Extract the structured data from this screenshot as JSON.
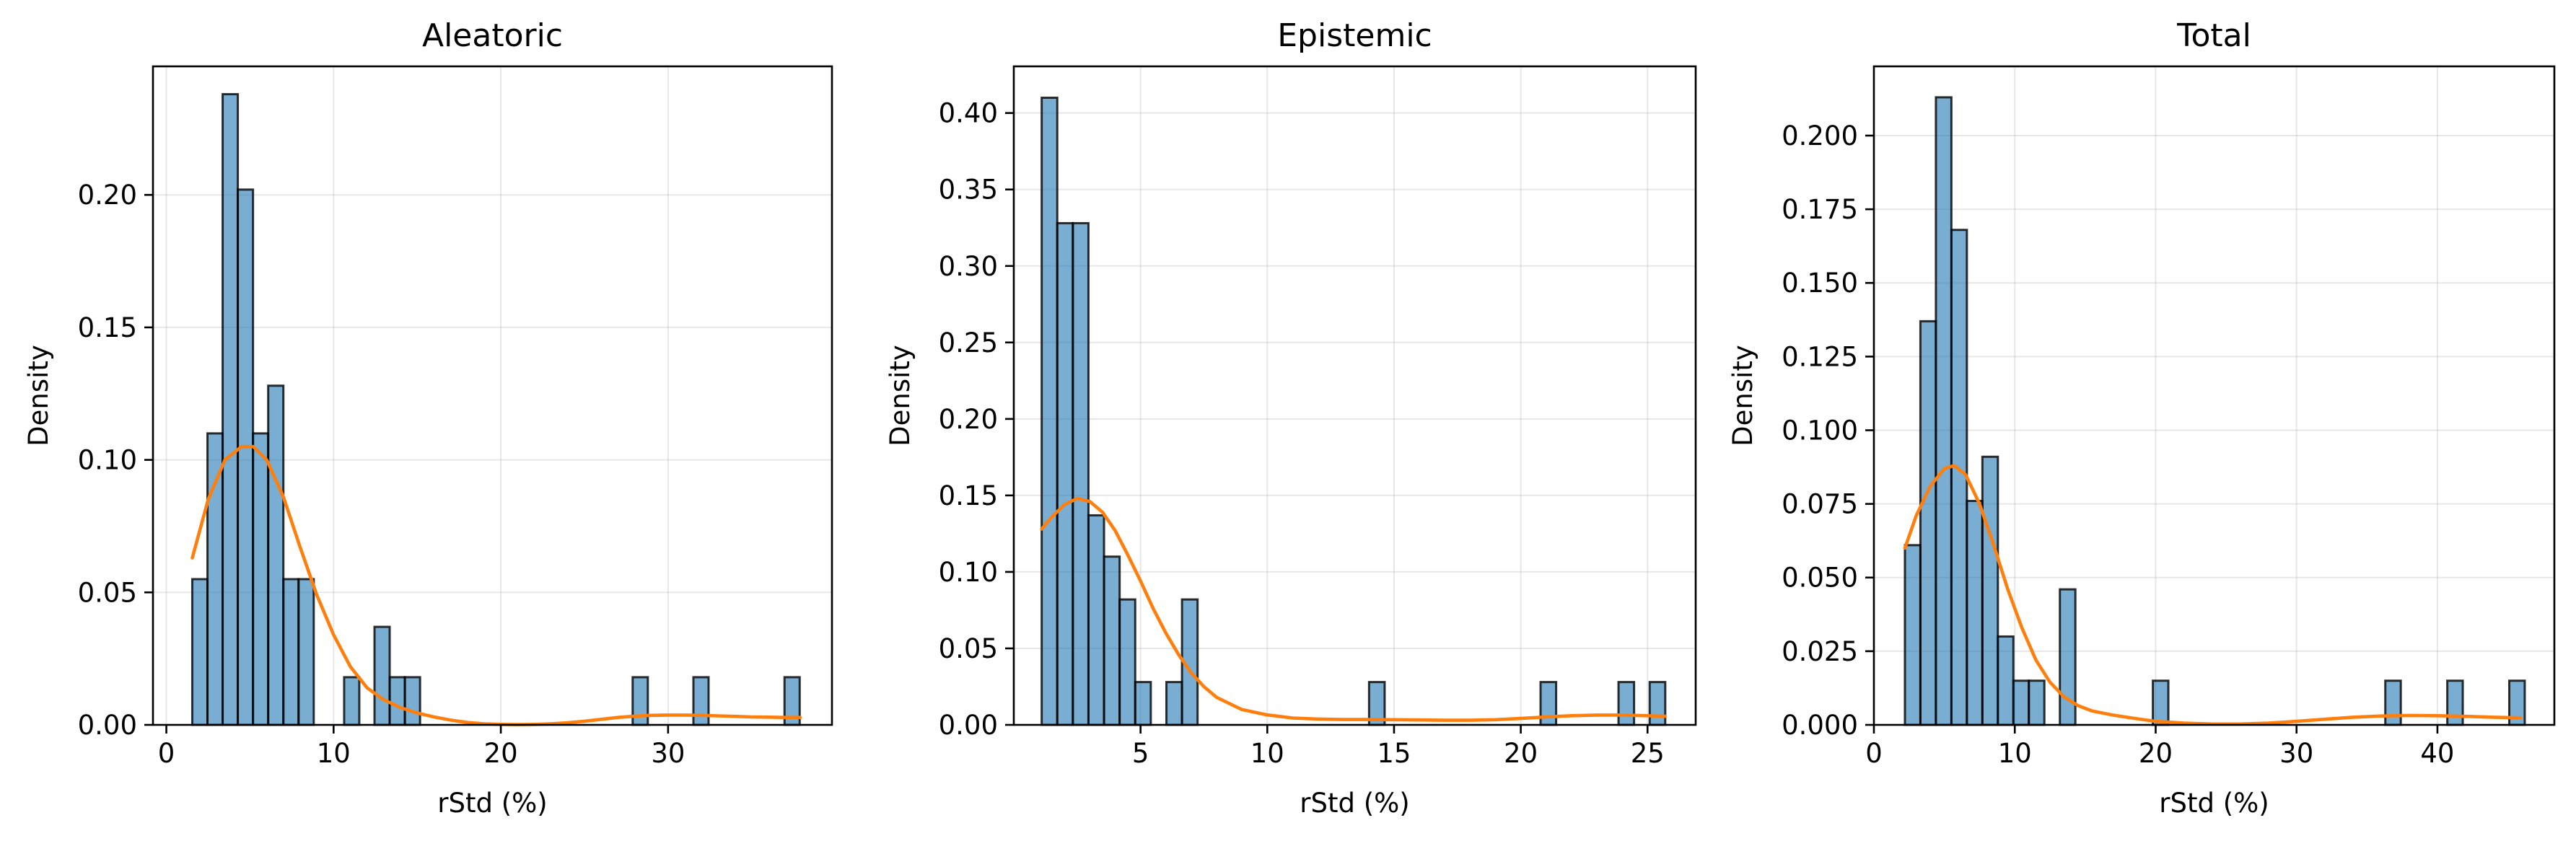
{
  "colors": {
    "bar": "#1f77b4",
    "bar_opacity": 0.6,
    "kde": "#ff7f0e"
  },
  "chart_data": [
    {
      "type": "bar",
      "title": "Aleatoric",
      "xlabel": "rStd (%)",
      "ylabel": "Density",
      "xlim": [
        -0.8,
        39.8
      ],
      "ylim": [
        0,
        0.2485
      ],
      "xticks": [
        0,
        10,
        20,
        30
      ],
      "yticks": [
        0.0,
        0.05,
        0.1,
        0.15,
        0.2
      ],
      "ytick_labels": [
        "0.00",
        "0.05",
        "0.10",
        "0.15",
        "0.20"
      ],
      "grid": true,
      "bin_start": 1.55,
      "bin_width": 0.908,
      "values": [
        0.055,
        0.11,
        0.238,
        0.202,
        0.11,
        0.128,
        0.055,
        0.055,
        0,
        0,
        0.018,
        0,
        0.037,
        0.018,
        0.018,
        0,
        0,
        0,
        0,
        0,
        0,
        0,
        0,
        0,
        0,
        0,
        0,
        0,
        0,
        0.018,
        0,
        0,
        0,
        0.018,
        0,
        0,
        0,
        0,
        0,
        0.018
      ],
      "kde": {
        "x": [
          1.55,
          2.5,
          3.5,
          4.5,
          5.2,
          6,
          7,
          8,
          9,
          10,
          11,
          12,
          13,
          14,
          15,
          16,
          17,
          18,
          19,
          20,
          21,
          22,
          23,
          24,
          25,
          26,
          27,
          28,
          29,
          30,
          31,
          32,
          33,
          34,
          35,
          36,
          37,
          37.9
        ],
        "y": [
          0.063,
          0.085,
          0.1,
          0.105,
          0.105,
          0.1,
          0.086,
          0.067,
          0.049,
          0.034,
          0.022,
          0.014,
          0.0095,
          0.0065,
          0.0045,
          0.003,
          0.0018,
          0.0009,
          0.0004,
          0.0002,
          0.0001,
          0.0002,
          0.0004,
          0.0008,
          0.0014,
          0.0021,
          0.0028,
          0.0033,
          0.0036,
          0.0037,
          0.0037,
          0.0036,
          0.0034,
          0.0032,
          0.003,
          0.0029,
          0.0028,
          0.0028
        ]
      }
    },
    {
      "type": "bar",
      "title": "Epistemic",
      "xlabel": "rStd (%)",
      "ylabel": "Density",
      "xlim": [
        0.0,
        26.9
      ],
      "ylim": [
        0,
        0.4305
      ],
      "xticks": [
        5,
        10,
        15,
        20,
        25
      ],
      "yticks": [
        0.0,
        0.05,
        0.1,
        0.15,
        0.2,
        0.25,
        0.3,
        0.35,
        0.4
      ],
      "ytick_labels": [
        "0.00",
        "0.05",
        "0.10",
        "0.15",
        "0.20",
        "0.25",
        "0.30",
        "0.35",
        "0.40"
      ],
      "grid": true,
      "bin_start": 1.1,
      "bin_width": 0.615,
      "values": [
        0.41,
        0.328,
        0.328,
        0.137,
        0.11,
        0.082,
        0.028,
        0,
        0.028,
        0.082,
        0,
        0,
        0,
        0,
        0,
        0,
        0,
        0,
        0,
        0,
        0,
        0.028,
        0,
        0,
        0,
        0,
        0,
        0,
        0,
        0,
        0,
        0,
        0.028,
        0,
        0,
        0,
        0,
        0.028,
        0,
        0.028
      ],
      "kde": {
        "x": [
          1.1,
          1.5,
          2,
          2.5,
          3,
          3.5,
          4,
          4.5,
          5,
          5.5,
          6,
          6.5,
          7,
          7.5,
          8,
          9,
          10,
          11,
          12,
          13,
          14,
          15,
          16,
          17,
          18,
          19,
          20,
          21,
          22,
          23,
          24,
          25,
          25.7
        ],
        "y": [
          0.128,
          0.136,
          0.144,
          0.148,
          0.146,
          0.139,
          0.127,
          0.111,
          0.094,
          0.076,
          0.06,
          0.046,
          0.034,
          0.025,
          0.018,
          0.01,
          0.0065,
          0.0045,
          0.0038,
          0.0035,
          0.0035,
          0.0034,
          0.0032,
          0.003,
          0.003,
          0.0034,
          0.0042,
          0.0052,
          0.006,
          0.0064,
          0.0064,
          0.006,
          0.0056
        ]
      }
    },
    {
      "type": "bar",
      "title": "Total",
      "xlabel": "rStd (%)",
      "ylabel": "Density",
      "xlim": [
        0.0,
        48.3
      ],
      "ylim": [
        0,
        0.2235
      ],
      "xticks": [
        0,
        10,
        20,
        30,
        40
      ],
      "yticks": [
        0.0,
        0.025,
        0.05,
        0.075,
        0.1,
        0.125,
        0.15,
        0.175,
        0.2
      ],
      "ytick_labels": [
        "0.000",
        "0.025",
        "0.050",
        "0.075",
        "0.100",
        "0.125",
        "0.150",
        "0.175",
        "0.200"
      ],
      "grid": true,
      "bin_start": 2.2,
      "bin_width": 1.1,
      "values": [
        0.061,
        0.137,
        0.213,
        0.168,
        0.076,
        0.091,
        0.03,
        0.015,
        0.015,
        0,
        0.046,
        0,
        0,
        0,
        0,
        0,
        0.015,
        0,
        0,
        0,
        0,
        0,
        0,
        0,
        0,
        0,
        0,
        0,
        0,
        0,
        0,
        0.015,
        0,
        0,
        0,
        0.015,
        0,
        0,
        0,
        0.015
      ],
      "kde": {
        "x": [
          2.2,
          3,
          4,
          5,
          5.7,
          6.5,
          7.5,
          8.5,
          9.5,
          10.5,
          11.5,
          12.5,
          13.5,
          14.5,
          15.5,
          17,
          18.5,
          20,
          22,
          24,
          26,
          28,
          30,
          32,
          34,
          36,
          38,
          40,
          42,
          44,
          45.9
        ],
        "y": [
          0.06,
          0.071,
          0.081,
          0.087,
          0.088,
          0.085,
          0.075,
          0.061,
          0.046,
          0.033,
          0.022,
          0.0145,
          0.0095,
          0.0065,
          0.0047,
          0.0033,
          0.0022,
          0.0012,
          0.0006,
          0.0003,
          0.0003,
          0.0006,
          0.0012,
          0.0019,
          0.0026,
          0.003,
          0.0032,
          0.0031,
          0.0029,
          0.0026,
          0.0024
        ]
      }
    }
  ]
}
